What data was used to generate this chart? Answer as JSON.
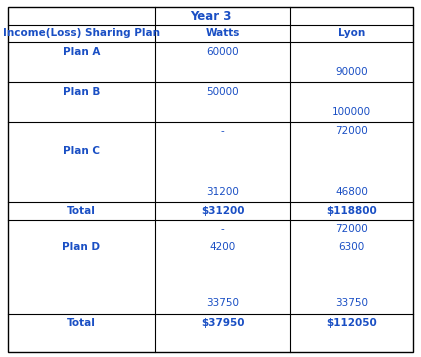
{
  "title": "Year 3",
  "col_headers": [
    "Income(Loss) Sharing Plan",
    "Watts",
    "Lyon"
  ],
  "section1_rows": [
    [
      "Plan A",
      "60000",
      ""
    ],
    [
      "",
      "",
      "90000"
    ],
    [
      "Plan B",
      "50000",
      ""
    ],
    [
      "",
      "",
      "100000"
    ],
    [
      "",
      "-",
      "72000"
    ],
    [
      "Plan C",
      "",
      ""
    ],
    [
      "",
      "",
      ""
    ],
    [
      "",
      "31200",
      "46800"
    ]
  ],
  "total_row1": [
    "Total",
    "$31200",
    "$118800"
  ],
  "section2_rows": [
    [
      "",
      "-",
      "72000"
    ],
    [
      "Plan D",
      "4200",
      "6300"
    ],
    [
      "",
      "",
      ""
    ],
    [
      "",
      "",
      ""
    ],
    [
      "",
      "33750",
      "33750"
    ]
  ],
  "total_row2": [
    "Total",
    "$37950",
    "$112050"
  ],
  "text_color": "#1a4fc4",
  "border_color": "#000000",
  "font_size": 7.5,
  "title_font_size": 8.5
}
